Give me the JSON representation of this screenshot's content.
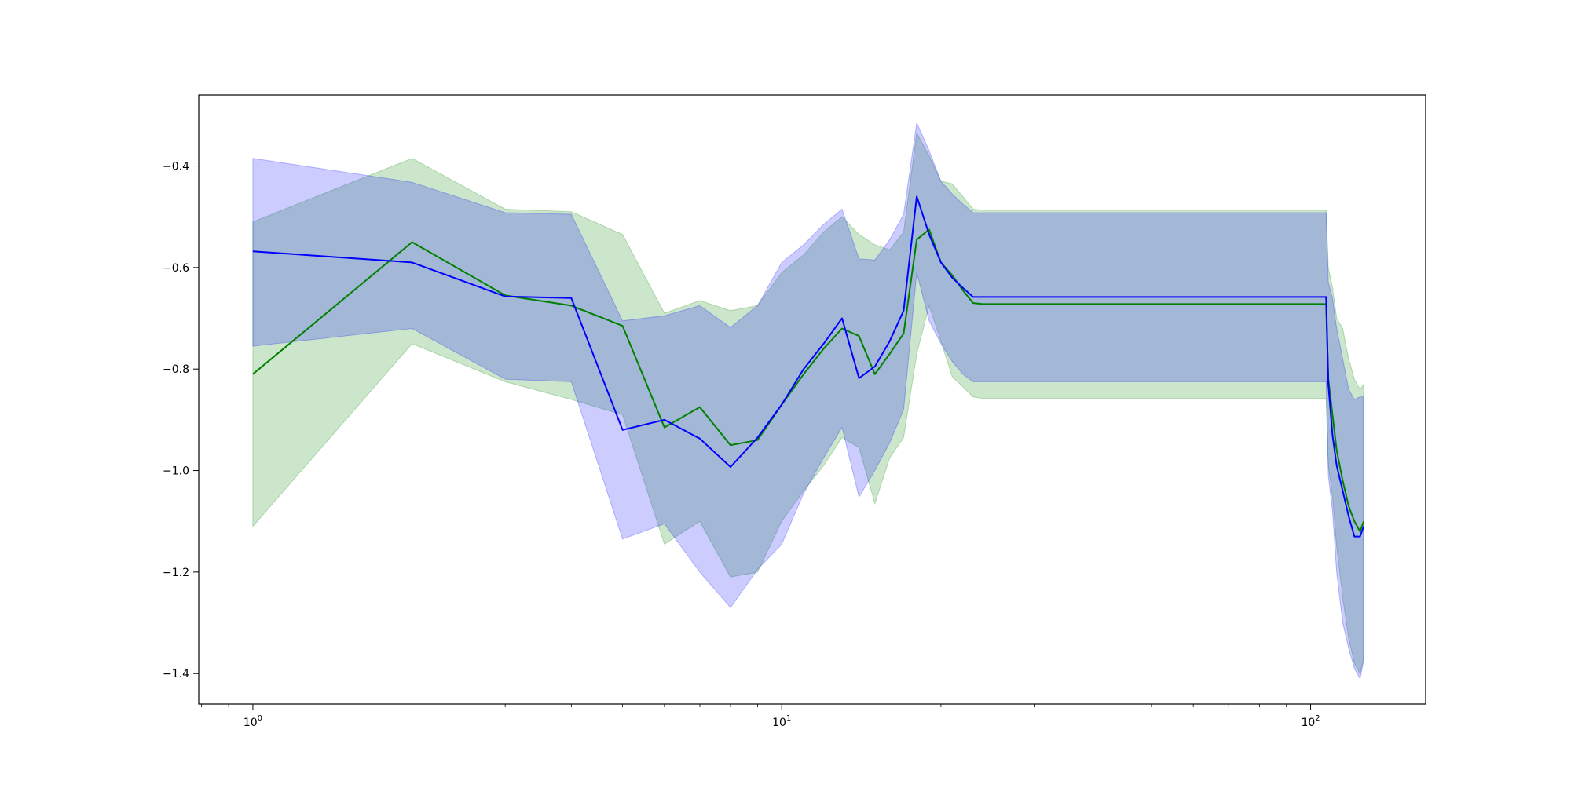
{
  "chart_data": {
    "type": "line",
    "title": "",
    "xlabel": "",
    "ylabel": "",
    "xscale": "log",
    "xlim": [
      0.79,
      165
    ],
    "ylim": [
      -1.46,
      -0.26
    ],
    "grid": false,
    "legend": "none",
    "x_ticks": [
      {
        "value": 1,
        "base": "10",
        "exp": "0"
      },
      {
        "value": 10,
        "base": "10",
        "exp": "1"
      },
      {
        "value": 100,
        "base": "10",
        "exp": "2"
      }
    ],
    "y_ticks": [
      {
        "value": -0.4,
        "label": "−0.4"
      },
      {
        "value": -0.6,
        "label": "−0.6"
      },
      {
        "value": -0.8,
        "label": "−0.8"
      },
      {
        "value": -1.0,
        "label": "−1.0"
      },
      {
        "value": -1.2,
        "label": "−1.2"
      },
      {
        "value": -1.4,
        "label": "−1.4"
      }
    ],
    "series": [
      {
        "color": "#008000",
        "band_color": "#008000",
        "points": [
          {
            "x": 1,
            "y": -0.81,
            "lo": -1.11,
            "hi": -0.51
          },
          {
            "x": 2,
            "y": -0.55,
            "lo": -0.75,
            "hi": -0.385
          },
          {
            "x": 3,
            "y": -0.655,
            "lo": -0.825,
            "hi": -0.485
          },
          {
            "x": 4,
            "y": -0.675,
            "lo": -0.86,
            "hi": -0.49
          },
          {
            "x": 5,
            "y": -0.715,
            "lo": -0.89,
            "hi": -0.535
          },
          {
            "x": 6,
            "y": -0.915,
            "lo": -1.145,
            "hi": -0.69
          },
          {
            "x": 7,
            "y": -0.875,
            "lo": -1.1,
            "hi": -0.665
          },
          {
            "x": 8,
            "y": -0.95,
            "lo": -1.21,
            "hi": -0.685
          },
          {
            "x": 9,
            "y": -0.94,
            "lo": -1.2,
            "hi": -0.675
          },
          {
            "x": 10,
            "y": -0.87,
            "lo": -1.1,
            "hi": -0.61
          },
          {
            "x": 11,
            "y": -0.81,
            "lo": -1.04,
            "hi": -0.575
          },
          {
            "x": 12,
            "y": -0.76,
            "lo": -0.99,
            "hi": -0.53
          },
          {
            "x": 13,
            "y": -0.72,
            "lo": -0.935,
            "hi": -0.5
          },
          {
            "x": 14,
            "y": -0.735,
            "lo": -0.955,
            "hi": -0.535
          },
          {
            "x": 15,
            "y": -0.81,
            "lo": -1.065,
            "hi": -0.555
          },
          {
            "x": 16,
            "y": -0.77,
            "lo": -0.975,
            "hi": -0.565
          },
          {
            "x": 17,
            "y": -0.73,
            "lo": -0.935,
            "hi": -0.53
          },
          {
            "x": 18,
            "y": -0.545,
            "lo": -0.77,
            "hi": -0.335
          },
          {
            "x": 19,
            "y": -0.525,
            "lo": -0.675,
            "hi": -0.38
          },
          {
            "x": 20,
            "y": -0.59,
            "lo": -0.745,
            "hi": -0.43
          },
          {
            "x": 21,
            "y": -0.615,
            "lo": -0.815,
            "hi": -0.435
          },
          {
            "x": 22,
            "y": -0.645,
            "lo": -0.835,
            "hi": -0.46
          },
          {
            "x": 23,
            "y": -0.67,
            "lo": -0.855,
            "hi": -0.485
          },
          {
            "x": 24,
            "y": -0.672,
            "lo": -0.858,
            "hi": -0.487
          },
          {
            "x": 107,
            "y": -0.672,
            "lo": -0.858,
            "hi": -0.487
          },
          {
            "x": 108,
            "y": -0.82,
            "lo": -0.99,
            "hi": -0.6
          },
          {
            "x": 110,
            "y": -0.89,
            "lo": -1.05,
            "hi": -0.64
          },
          {
            "x": 112,
            "y": -0.96,
            "lo": -1.15,
            "hi": -0.7
          },
          {
            "x": 115,
            "y": -1.02,
            "lo": -1.25,
            "hi": -0.72
          },
          {
            "x": 118,
            "y": -1.07,
            "lo": -1.33,
            "hi": -0.78
          },
          {
            "x": 121,
            "y": -1.1,
            "lo": -1.38,
            "hi": -0.82
          },
          {
            "x": 124,
            "y": -1.12,
            "lo": -1.4,
            "hi": -0.84
          },
          {
            "x": 126,
            "y": -1.1,
            "lo": -1.37,
            "hi": -0.83
          }
        ]
      },
      {
        "color": "#0000ff",
        "band_color": "#0000ff",
        "points": [
          {
            "x": 1,
            "y": -0.568,
            "lo": -0.755,
            "hi": -0.385
          },
          {
            "x": 2,
            "y": -0.59,
            "lo": -0.72,
            "hi": -0.432
          },
          {
            "x": 3,
            "y": -0.657,
            "lo": -0.82,
            "hi": -0.492
          },
          {
            "x": 4,
            "y": -0.66,
            "lo": -0.825,
            "hi": -0.495
          },
          {
            "x": 5,
            "y": -0.92,
            "lo": -1.135,
            "hi": -0.705
          },
          {
            "x": 6,
            "y": -0.9,
            "lo": -1.105,
            "hi": -0.695
          },
          {
            "x": 7,
            "y": -0.937,
            "lo": -1.2,
            "hi": -0.675
          },
          {
            "x": 8,
            "y": -0.993,
            "lo": -1.27,
            "hi": -0.718
          },
          {
            "x": 9,
            "y": -0.935,
            "lo": -1.195,
            "hi": -0.675
          },
          {
            "x": 10,
            "y": -0.87,
            "lo": -1.145,
            "hi": -0.59
          },
          {
            "x": 11,
            "y": -0.8,
            "lo": -1.045,
            "hi": -0.555
          },
          {
            "x": 12,
            "y": -0.75,
            "lo": -0.975,
            "hi": -0.515
          },
          {
            "x": 13,
            "y": -0.7,
            "lo": -0.915,
            "hi": -0.485
          },
          {
            "x": 14,
            "y": -0.818,
            "lo": -1.052,
            "hi": -0.583
          },
          {
            "x": 15,
            "y": -0.795,
            "lo": -1.0,
            "hi": -0.585
          },
          {
            "x": 16,
            "y": -0.745,
            "lo": -0.945,
            "hi": -0.545
          },
          {
            "x": 17,
            "y": -0.685,
            "lo": -0.88,
            "hi": -0.495
          },
          {
            "x": 18,
            "y": -0.46,
            "lo": -0.61,
            "hi": -0.315
          },
          {
            "x": 19,
            "y": -0.535,
            "lo": -0.705,
            "hi": -0.37
          },
          {
            "x": 20,
            "y": -0.59,
            "lo": -0.75,
            "hi": -0.43
          },
          {
            "x": 21,
            "y": -0.62,
            "lo": -0.785,
            "hi": -0.455
          },
          {
            "x": 22,
            "y": -0.64,
            "lo": -0.81,
            "hi": -0.475
          },
          {
            "x": 23,
            "y": -0.658,
            "lo": -0.825,
            "hi": -0.492
          },
          {
            "x": 107,
            "y": -0.658,
            "lo": -0.825,
            "hi": -0.492
          },
          {
            "x": 108,
            "y": -0.83,
            "lo": -1.01,
            "hi": -0.63
          },
          {
            "x": 110,
            "y": -0.93,
            "lo": -1.08,
            "hi": -0.66
          },
          {
            "x": 112,
            "y": -0.99,
            "lo": -1.2,
            "hi": -0.72
          },
          {
            "x": 115,
            "y": -1.04,
            "lo": -1.3,
            "hi": -0.78
          },
          {
            "x": 118,
            "y": -1.09,
            "lo": -1.35,
            "hi": -0.84
          },
          {
            "x": 121,
            "y": -1.13,
            "lo": -1.39,
            "hi": -0.86
          },
          {
            "x": 124,
            "y": -1.13,
            "lo": -1.41,
            "hi": -0.855
          },
          {
            "x": 126,
            "y": -1.11,
            "lo": -1.375,
            "hi": -0.855
          }
        ]
      }
    ]
  }
}
